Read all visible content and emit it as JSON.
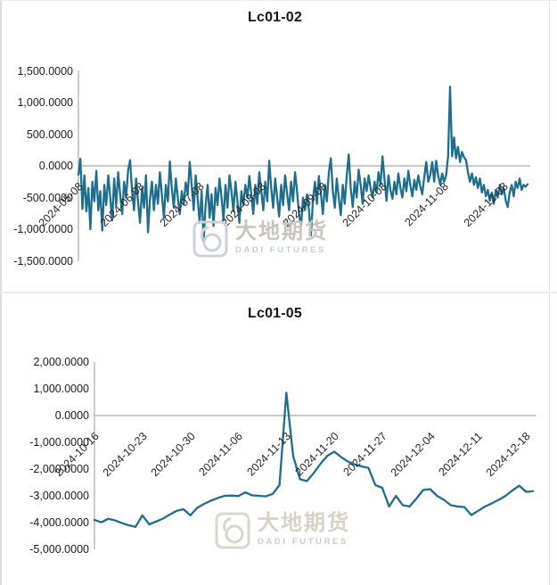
{
  "watermark": {
    "cn": "大地期货",
    "en": "DADI FUTURES"
  },
  "chart_data": [
    {
      "type": "line",
      "title": "Lc01-02",
      "xlabel": "",
      "ylabel": "",
      "legend": "none",
      "grid": "zero-line-only",
      "line_color": "#1e6e8e",
      "axis_color": "#a9a9a9",
      "ylim": [
        -1500,
        1500
      ],
      "x_start": "2024-05-08",
      "x_end": "2024-12-20",
      "x_frequency": "daily",
      "y_ticks": [
        {
          "label": "1,500.0000",
          "v": 1500
        },
        {
          "label": "1,000.0000",
          "v": 1000
        },
        {
          "label": "500.0000",
          "v": 500
        },
        {
          "label": "0.0000",
          "v": 0
        },
        {
          "label": "-500.0000",
          "v": -500
        },
        {
          "label": "-1,000.0000",
          "v": -1000
        },
        {
          "label": "-1,500.0000",
          "v": -1500
        }
      ],
      "x_ticks": [
        {
          "label": "2024-05-08",
          "f": 0.0
        },
        {
          "label": "2024-06-08",
          "f": 0.1372
        },
        {
          "label": "2024-07-08",
          "f": 0.2699
        },
        {
          "label": "2024-08-08",
          "f": 0.4071
        },
        {
          "label": "2024-09-08",
          "f": 0.5442
        },
        {
          "label": "2024-10-08",
          "f": 0.677
        },
        {
          "label": "2024-11-08",
          "f": 0.8142
        },
        {
          "label": "2024-12-08",
          "f": 0.9469
        }
      ],
      "values": [
        -140,
        110,
        -680,
        -150,
        -720,
        -350,
        -1000,
        -250,
        -560,
        -80,
        -700,
        -400,
        -1020,
        -300,
        -620,
        -150,
        -500,
        -860,
        -200,
        -620,
        -100,
        -450,
        -760,
        -250,
        -500,
        -60,
        90,
        -400,
        -700,
        -200,
        -560,
        -900,
        -350,
        -660,
        -150,
        -1050,
        -520,
        -250,
        -700,
        -300,
        -600,
        -100,
        -460,
        -820,
        -300,
        -560,
        70,
        -350,
        -660,
        -200,
        -500,
        -760,
        -400,
        -610,
        -260,
        -450,
        60,
        -300,
        -700,
        -150,
        -520,
        -900,
        -400,
        -1200,
        -620,
        -300,
        -820,
        -450,
        -950,
        -350,
        -620,
        -200,
        -500,
        -860,
        -300,
        -660,
        -150,
        -400,
        -720,
        -250,
        -560,
        -900,
        -400,
        -620,
        -300,
        -500,
        -160,
        -450,
        -760,
        -300,
        -600,
        -100,
        -400,
        -700,
        -250,
        -560,
        80,
        -350,
        -660,
        -200,
        -500,
        -800,
        -300,
        -620,
        -150,
        -450,
        -700,
        -250,
        -560,
        -100,
        -400,
        -750,
        -950,
        -500,
        -700,
        -450,
        -700,
        -1100,
        -520,
        -250,
        -600,
        -160,
        -450,
        -760,
        -300,
        -560,
        -100,
        120,
        -400,
        -660,
        -200,
        -500,
        -780,
        -300,
        -600,
        -150,
        180,
        -350,
        -650,
        -250,
        -500,
        -60,
        -300,
        -600,
        -200,
        -400,
        -150,
        -350,
        -500,
        -250,
        -420,
        -100,
        -300,
        150,
        -200,
        -550,
        -150,
        -380,
        -520,
        -250,
        -450,
        -120,
        -350,
        -500,
        -200,
        -400,
        -80,
        -300,
        -480,
        -220,
        -380,
        -150,
        -320,
        -450,
        -180,
        60,
        -250,
        -150,
        60,
        -250,
        80,
        -150,
        -300,
        -120,
        -250,
        -150,
        150,
        1250,
        150,
        450,
        120,
        300,
        60,
        220,
        140,
        90,
        -100,
        -250,
        -120,
        -300,
        -180,
        -350,
        -200,
        -420,
        -300,
        -480,
        -380,
        -550,
        -420,
        -600,
        -380,
        -500,
        -300,
        -450,
        -350,
        -550,
        -650,
        -420,
        -300,
        -480,
        -250,
        -350,
        -200,
        -380,
        -300,
        -330,
        -290
      ]
    },
    {
      "type": "line",
      "title": "Lc01-05",
      "xlabel": "",
      "ylabel": "",
      "legend": "none",
      "grid": "zero-line-only",
      "line_color": "#1e6e8e",
      "axis_color": "#a9a9a9",
      "ylim": [
        -5000,
        2000
      ],
      "x_start": "2024-10-16",
      "x_end": "2024-12-19",
      "x_frequency": "daily",
      "y_ticks": [
        {
          "label": "2,000.0000",
          "v": 2000
        },
        {
          "label": "1,000.0000",
          "v": 1000
        },
        {
          "label": "0.0000",
          "v": 0
        },
        {
          "label": "-1,000.0000",
          "v": -1000
        },
        {
          "label": "-2,000.0000",
          "v": -2000
        },
        {
          "label": "-3,000.0000",
          "v": -3000
        },
        {
          "label": "-4,000.0000",
          "v": -4000
        },
        {
          "label": "-5,000.0000",
          "v": -5000
        }
      ],
      "x_ticks": [
        {
          "label": "2024-10-16",
          "f": 0.0
        },
        {
          "label": "2024-10-23",
          "f": 0.1094
        },
        {
          "label": "2024-10-30",
          "f": 0.2188
        },
        {
          "label": "2024-11-06",
          "f": 0.3281
        },
        {
          "label": "2024-11-13",
          "f": 0.4375
        },
        {
          "label": "2024-11-20",
          "f": 0.5469
        },
        {
          "label": "2024-11-27",
          "f": 0.6563
        },
        {
          "label": "2024-12-04",
          "f": 0.7656
        },
        {
          "label": "2024-12-11",
          "f": 0.875
        },
        {
          "label": "2024-12-18",
          "f": 0.9844
        }
      ],
      "values": [
        -3900,
        -3990,
        -3860,
        -3920,
        -4020,
        -4100,
        -4160,
        -3730,
        -4070,
        -3960,
        -3850,
        -3700,
        -3560,
        -3500,
        -3730,
        -3450,
        -3300,
        -3180,
        -3080,
        -3000,
        -2990,
        -3010,
        -2870,
        -2980,
        -3000,
        -3020,
        -2930,
        -2600,
        850,
        -1500,
        -2380,
        -2450,
        -2150,
        -1800,
        -1500,
        -1350,
        -1550,
        -1720,
        -1830,
        -1900,
        -1960,
        -2600,
        -2700,
        -3400,
        -3000,
        -3350,
        -3400,
        -3100,
        -2780,
        -2750,
        -3000,
        -3150,
        -3350,
        -3400,
        -3420,
        -3720,
        -3560,
        -3400,
        -3280,
        -3150,
        -3000,
        -2800,
        -2620,
        -2850,
        -2830
      ]
    }
  ]
}
